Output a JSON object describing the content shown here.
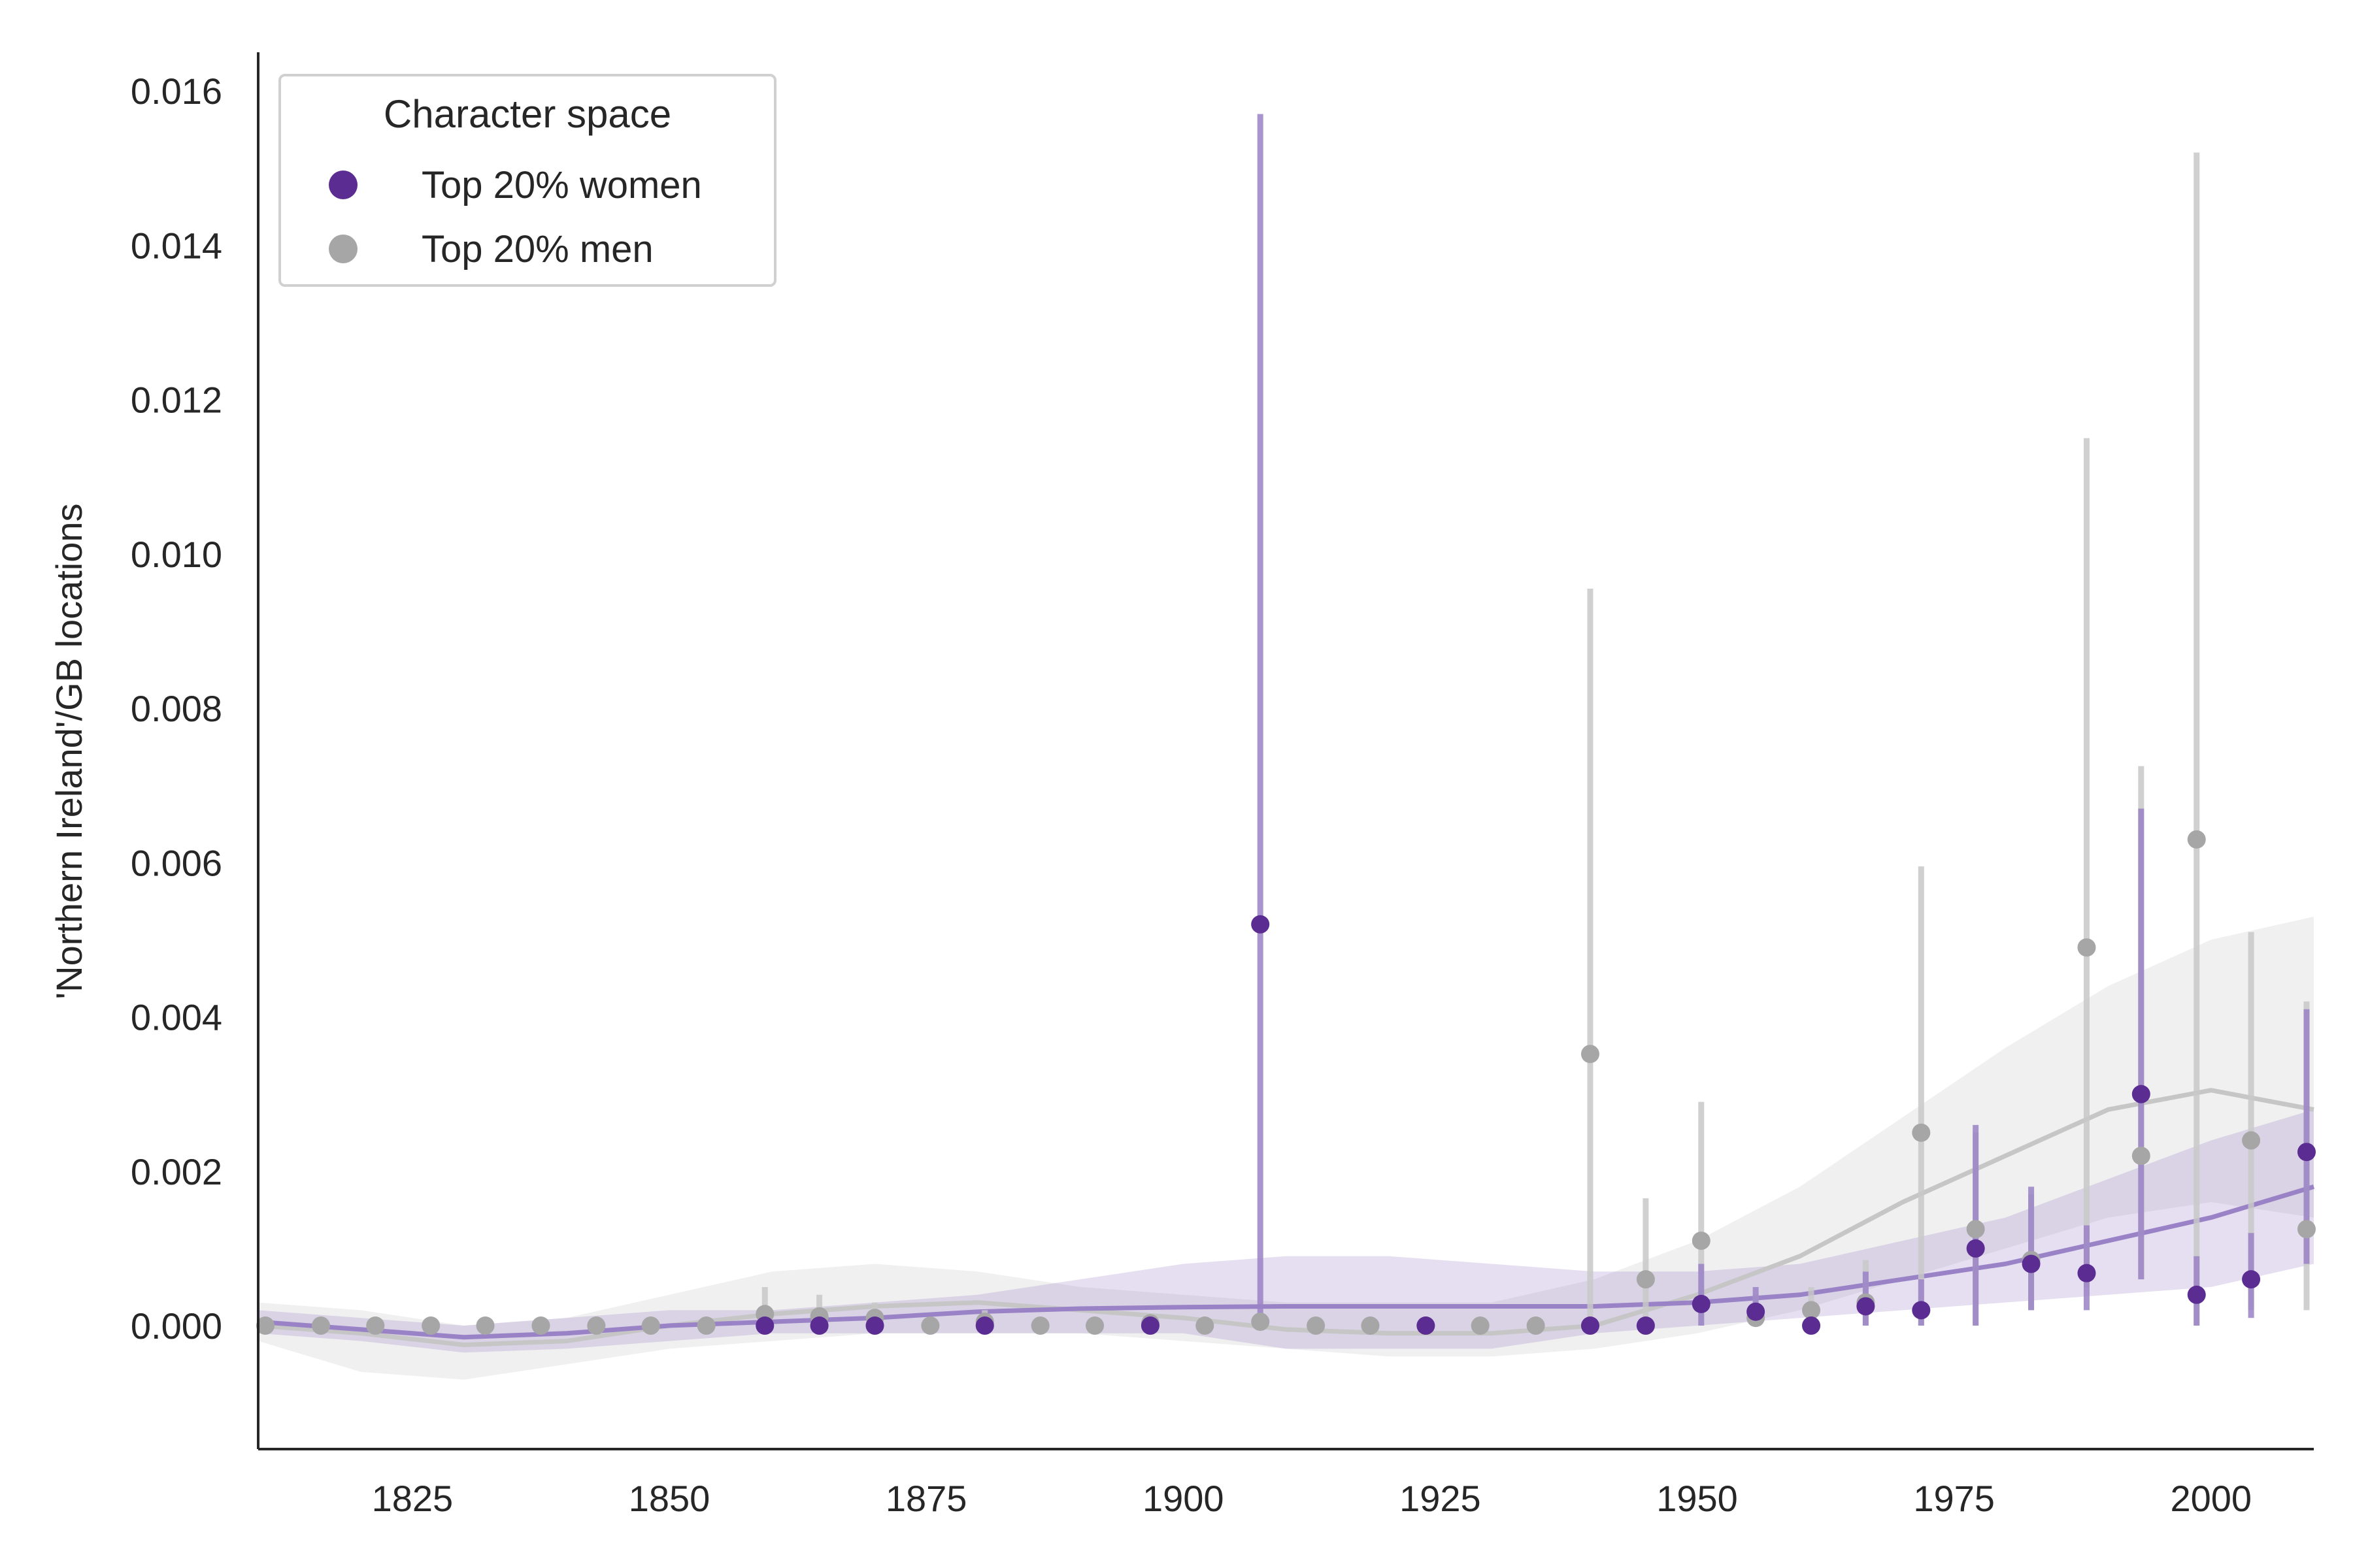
{
  "chart_data": {
    "type": "scatter",
    "title": "",
    "xlabel": "",
    "ylabel": "'Northern Ireland'/GB locations",
    "xlim": [
      1810,
      2010
    ],
    "ylim": [
      -0.0016,
      0.0165
    ],
    "xticks": [
      "1825",
      "1850",
      "1875",
      "1900",
      "1925",
      "1950",
      "1975",
      "2000"
    ],
    "yticks": [
      "0.000",
      "0.002",
      "0.004",
      "0.006",
      "0.008",
      "0.010",
      "0.012",
      "0.014",
      "0.016"
    ],
    "grid": false,
    "legend": {
      "title": "Character space",
      "placement": "top-left"
    },
    "series": [
      {
        "name": "Top 20% women",
        "color": "#5b2c91",
        "points": [
          {
            "x": 1859.3,
            "y": 0.0,
            "lo": 0.0,
            "hi": 0.0001
          },
          {
            "x": 1864.6,
            "y": 0.0,
            "lo": 0.0,
            "hi": 0.0001
          },
          {
            "x": 1870.0,
            "y": 0.0,
            "lo": 0.0,
            "hi": 0.0001
          },
          {
            "x": 1880.7,
            "y": 0.0,
            "lo": 0.0,
            "hi": 0.0001
          },
          {
            "x": 1896.8,
            "y": 0.0,
            "lo": 0.0,
            "hi": 0.0001
          },
          {
            "x": 1907.5,
            "y": 0.0052,
            "lo": 0.0,
            "hi": 0.0157
          },
          {
            "x": 1923.6,
            "y": 0.0,
            "lo": 0.0,
            "hi": 0.0001
          },
          {
            "x": 1939.6,
            "y": 0.0,
            "lo": 0.0,
            "hi": 0.0001
          },
          {
            "x": 1945.0,
            "y": 0.0,
            "lo": 0.0,
            "hi": 0.0001
          },
          {
            "x": 1950.4,
            "y": 0.00028,
            "lo": 0.0,
            "hi": 0.0008
          },
          {
            "x": 1955.7,
            "y": 0.00018,
            "lo": 0.0,
            "hi": 0.0005
          },
          {
            "x": 1961.1,
            "y": 0.0,
            "lo": 0.0,
            "hi": 0.0001
          },
          {
            "x": 1966.4,
            "y": 0.00025,
            "lo": 0.0,
            "hi": 0.0007
          },
          {
            "x": 1971.8,
            "y": 0.0002,
            "lo": 0.0,
            "hi": 0.0006
          },
          {
            "x": 1977.1,
            "y": 0.001,
            "lo": 0.0,
            "hi": 0.0026
          },
          {
            "x": 1982.5,
            "y": 0.0008,
            "lo": 0.0002,
            "hi": 0.0018
          },
          {
            "x": 1987.9,
            "y": 0.00068,
            "lo": 0.0002,
            "hi": 0.0013
          },
          {
            "x": 1993.2,
            "y": 0.003,
            "lo": 0.0006,
            "hi": 0.0067
          },
          {
            "x": 1998.6,
            "y": 0.0004,
            "lo": 0.0,
            "hi": 0.0009
          },
          {
            "x": 2003.9,
            "y": 0.0006,
            "lo": 0.0001,
            "hi": 0.0012
          },
          {
            "x": 2009.3,
            "y": 0.00225,
            "lo": 0.0008,
            "hi": 0.0041
          }
        ],
        "trend": [
          [
            1810,
            5e-05
          ],
          [
            1820,
            -5e-05
          ],
          [
            1830,
            -0.00015
          ],
          [
            1840,
            -0.0001
          ],
          [
            1850,
            0.0
          ],
          [
            1860,
            5e-05
          ],
          [
            1870,
            0.0001
          ],
          [
            1880,
            0.00018
          ],
          [
            1890,
            0.00022
          ],
          [
            1900,
            0.00024
          ],
          [
            1910,
            0.00025
          ],
          [
            1920,
            0.00025
          ],
          [
            1930,
            0.00025
          ],
          [
            1940,
            0.00025
          ],
          [
            1950,
            0.0003
          ],
          [
            1960,
            0.0004
          ],
          [
            1970,
            0.0006
          ],
          [
            1980,
            0.0008
          ],
          [
            1990,
            0.0011
          ],
          [
            2000,
            0.0014
          ],
          [
            2010,
            0.0018
          ]
        ],
        "band": [
          [
            1810,
            -0.0001,
            0.0002
          ],
          [
            1820,
            -0.0002,
            0.0001
          ],
          [
            1830,
            -0.00035,
            0.0
          ],
          [
            1840,
            -0.0003,
            0.0001
          ],
          [
            1850,
            -0.0002,
            0.0002
          ],
          [
            1860,
            -0.0001,
            0.0002
          ],
          [
            1870,
            -0.0001,
            0.0003
          ],
          [
            1880,
            -0.0001,
            0.0004
          ],
          [
            1890,
            -0.0001,
            0.0006
          ],
          [
            1900,
            -0.0001,
            0.0008
          ],
          [
            1910,
            -0.0003,
            0.0009
          ],
          [
            1920,
            -0.0003,
            0.0009
          ],
          [
            1930,
            -0.0003,
            0.0008
          ],
          [
            1940,
            -0.0001,
            0.0007
          ],
          [
            1950,
            0.0,
            0.0007
          ],
          [
            1960,
            0.0001,
            0.0008
          ],
          [
            1970,
            0.0002,
            0.0011
          ],
          [
            1980,
            0.0003,
            0.0014
          ],
          [
            1990,
            0.0004,
            0.0019
          ],
          [
            2000,
            0.0005,
            0.0024
          ],
          [
            2010,
            0.0008,
            0.0028
          ]
        ]
      },
      {
        "name": "Top 20% men",
        "color": "#a6a6a6",
        "points": [
          {
            "x": 1810.7,
            "y": 0.0,
            "lo": 0.0,
            "hi": 0.0001
          },
          {
            "x": 1816.1,
            "y": 0.0,
            "lo": 0.0,
            "hi": 0.0001
          },
          {
            "x": 1821.4,
            "y": 0.0,
            "lo": 0.0,
            "hi": 0.0001
          },
          {
            "x": 1826.8,
            "y": 0.0,
            "lo": 0.0,
            "hi": 0.0001
          },
          {
            "x": 1832.1,
            "y": 0.0,
            "lo": 0.0,
            "hi": 0.0001
          },
          {
            "x": 1837.5,
            "y": 0.0,
            "lo": 0.0,
            "hi": 0.0001
          },
          {
            "x": 1842.9,
            "y": 0.0,
            "lo": 0.0,
            "hi": 0.0001
          },
          {
            "x": 1848.2,
            "y": 0.0,
            "lo": 0.0,
            "hi": 0.0001
          },
          {
            "x": 1853.6,
            "y": 0.0,
            "lo": 0.0,
            "hi": 0.0001
          },
          {
            "x": 1859.3,
            "y": 0.00015,
            "lo": 0.0,
            "hi": 0.0005
          },
          {
            "x": 1864.6,
            "y": 0.00012,
            "lo": 0.0,
            "hi": 0.0004
          },
          {
            "x": 1870.0,
            "y": 0.0001,
            "lo": 0.0,
            "hi": 0.0003
          },
          {
            "x": 1875.4,
            "y": 0.0,
            "lo": 0.0,
            "hi": 0.0001
          },
          {
            "x": 1880.7,
            "y": 5e-05,
            "lo": 0.0,
            "hi": 0.0002
          },
          {
            "x": 1886.1,
            "y": 0.0,
            "lo": 0.0,
            "hi": 0.0001
          },
          {
            "x": 1891.4,
            "y": 0.0,
            "lo": 0.0,
            "hi": 0.0001
          },
          {
            "x": 1896.8,
            "y": 3e-05,
            "lo": 0.0,
            "hi": 0.0001
          },
          {
            "x": 1902.1,
            "y": 0.0,
            "lo": 0.0,
            "hi": 0.0001
          },
          {
            "x": 1907.5,
            "y": 5e-05,
            "lo": 0.0,
            "hi": 0.0001
          },
          {
            "x": 1912.9,
            "y": 0.0,
            "lo": 0.0,
            "hi": 0.0001
          },
          {
            "x": 1918.2,
            "y": 0.0,
            "lo": 0.0,
            "hi": 0.0001
          },
          {
            "x": 1923.6,
            "y": 0.0,
            "lo": 0.0,
            "hi": 0.0001
          },
          {
            "x": 1928.9,
            "y": 0.0,
            "lo": 0.0,
            "hi": 0.0001
          },
          {
            "x": 1934.3,
            "y": 0.0,
            "lo": 0.0,
            "hi": 0.0001
          },
          {
            "x": 1939.6,
            "y": 0.00352,
            "lo": 0.0,
            "hi": 0.00955
          },
          {
            "x": 1945.0,
            "y": 0.0006,
            "lo": 0.0,
            "hi": 0.00165
          },
          {
            "x": 1950.4,
            "y": 0.0011,
            "lo": 0.0,
            "hi": 0.0029
          },
          {
            "x": 1955.7,
            "y": 0.0001,
            "lo": 0.0,
            "hi": 0.0004
          },
          {
            "x": 1961.1,
            "y": 0.0002,
            "lo": 0.0,
            "hi": 0.0005
          },
          {
            "x": 1966.4,
            "y": 0.0003,
            "lo": 0.0,
            "hi": 0.00085
          },
          {
            "x": 1971.8,
            "y": 0.0025,
            "lo": 0.0,
            "hi": 0.00595
          },
          {
            "x": 1977.1,
            "y": 0.00125,
            "lo": 0.0,
            "hi": 0.0025
          },
          {
            "x": 1982.5,
            "y": 0.00085,
            "lo": 0.0002,
            "hi": 0.0017
          },
          {
            "x": 1987.9,
            "y": 0.0049,
            "lo": 0.0005,
            "hi": 0.0115
          },
          {
            "x": 1993.2,
            "y": 0.0022,
            "lo": 0.0006,
            "hi": 0.00725
          },
          {
            "x": 1998.6,
            "y": 0.0063,
            "lo": 0.0,
            "hi": 0.0152
          },
          {
            "x": 2003.9,
            "y": 0.0024,
            "lo": 0.0002,
            "hi": 0.0051
          },
          {
            "x": 2009.3,
            "y": 0.00125,
            "lo": 0.0002,
            "hi": 0.0042
          }
        ],
        "trend": [
          [
            1810,
            0.0
          ],
          [
            1820,
            -0.0001
          ],
          [
            1830,
            -0.00025
          ],
          [
            1840,
            -0.0002
          ],
          [
            1850,
            0.0
          ],
          [
            1860,
            0.00015
          ],
          [
            1870,
            0.00025
          ],
          [
            1880,
            0.0003
          ],
          [
            1890,
            0.0002
          ],
          [
            1900,
            0.0001
          ],
          [
            1910,
            -5e-05
          ],
          [
            1920,
            -0.0001
          ],
          [
            1930,
            -0.0001
          ],
          [
            1940,
            0.0
          ],
          [
            1950,
            0.0004
          ],
          [
            1960,
            0.0009
          ],
          [
            1970,
            0.0016
          ],
          [
            1980,
            0.0022
          ],
          [
            1990,
            0.0028
          ],
          [
            2000,
            0.00305
          ],
          [
            2010,
            0.0028
          ]
        ],
        "band": [
          [
            1810,
            -0.0002,
            0.0003
          ],
          [
            1820,
            -0.0006,
            0.0002
          ],
          [
            1830,
            -0.0007,
            0.0
          ],
          [
            1840,
            -0.0005,
            0.0001
          ],
          [
            1850,
            -0.0003,
            0.0004
          ],
          [
            1860,
            -0.0002,
            0.0007
          ],
          [
            1870,
            -0.0001,
            0.0008
          ],
          [
            1880,
            -0.0001,
            0.0007
          ],
          [
            1890,
            -0.0001,
            0.0005
          ],
          [
            1900,
            -0.0002,
            0.0004
          ],
          [
            1910,
            -0.0003,
            0.0003
          ],
          [
            1920,
            -0.0004,
            0.0003
          ],
          [
            1930,
            -0.0004,
            0.0003
          ],
          [
            1940,
            -0.0003,
            0.0006
          ],
          [
            1950,
            -0.0001,
            0.0011
          ],
          [
            1960,
            0.0002,
            0.0018
          ],
          [
            1970,
            0.0006,
            0.0027
          ],
          [
            1980,
            0.001,
            0.0036
          ],
          [
            1990,
            0.0014,
            0.0044
          ],
          [
            2000,
            0.0016,
            0.005
          ],
          [
            2010,
            0.0014,
            0.0053
          ]
        ]
      }
    ]
  }
}
